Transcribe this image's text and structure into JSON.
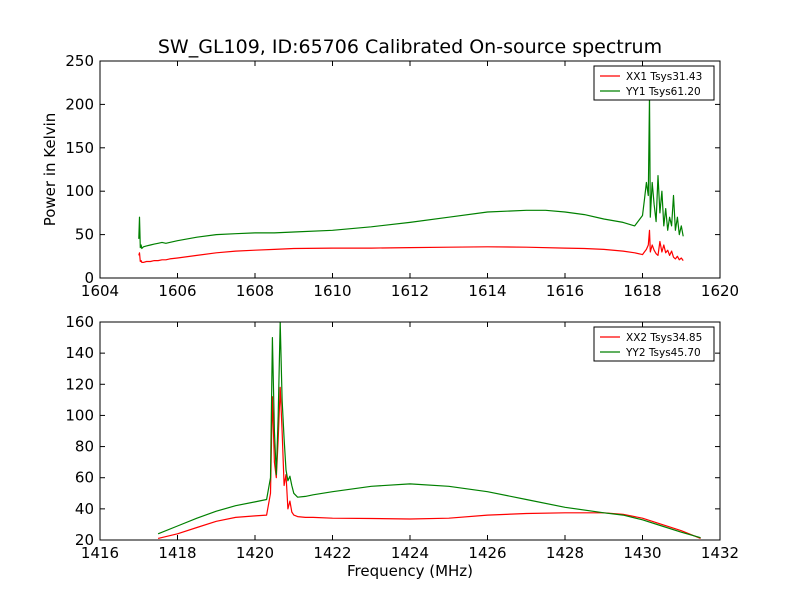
{
  "title": "SW_GL109, ID:65706 Calibrated On-source spectrum",
  "chart_data": [
    {
      "type": "line",
      "xlabel": "",
      "ylabel": "Power in Kelvin",
      "xlim": [
        1604,
        1620
      ],
      "ylim": [
        0,
        250
      ],
      "xticks": [
        "1604",
        "1606",
        "1608",
        "1610",
        "1612",
        "1614",
        "1616",
        "1618",
        "1620"
      ],
      "yticks": [
        "0",
        "50",
        "100",
        "150",
        "200",
        "250"
      ],
      "legend_position": "top-right",
      "grid": false,
      "series": [
        {
          "name": "XX1 Tsys31.43",
          "color": "#ff0000",
          "x": [
            1605.0,
            1605.02,
            1605.04,
            1605.06,
            1605.08,
            1605.12,
            1605.2,
            1605.3,
            1605.4,
            1605.5,
            1605.6,
            1605.7,
            1605.8,
            1606.0,
            1606.5,
            1607.0,
            1607.5,
            1608.0,
            1608.5,
            1609.0,
            1610.0,
            1611.0,
            1612.0,
            1613.0,
            1614.0,
            1615.0,
            1616.0,
            1616.5,
            1617.0,
            1617.5,
            1617.8,
            1618.0,
            1618.05,
            1618.1,
            1618.15,
            1618.18,
            1618.2,
            1618.25,
            1618.3,
            1618.35,
            1618.4,
            1618.45,
            1618.5,
            1618.55,
            1618.6,
            1618.65,
            1618.7,
            1618.75,
            1618.8,
            1618.85,
            1618.9,
            1618.95,
            1619.0,
            1619.05
          ],
          "y": [
            26,
            29,
            19,
            20,
            18,
            18,
            19,
            19,
            20,
            20,
            21,
            21,
            22,
            23,
            26,
            29,
            31,
            32,
            33,
            34,
            34.5,
            34.5,
            35,
            35.5,
            36,
            35.5,
            34.5,
            34,
            33,
            31,
            29,
            27,
            30,
            33,
            38,
            55,
            30,
            38,
            32,
            28,
            26,
            42,
            30,
            38,
            29,
            32,
            26,
            31,
            24,
            22,
            25,
            21,
            23,
            20
          ]
        },
        {
          "name": "YY1 Tsys61.20",
          "color": "#008000",
          "x": [
            1605.0,
            1605.02,
            1605.04,
            1605.06,
            1605.08,
            1605.12,
            1605.2,
            1605.3,
            1605.4,
            1605.5,
            1605.6,
            1605.7,
            1605.8,
            1606.0,
            1606.5,
            1607.0,
            1607.5,
            1608.0,
            1608.5,
            1609.0,
            1610.0,
            1611.0,
            1612.0,
            1613.0,
            1614.0,
            1615.0,
            1615.5,
            1616.0,
            1616.5,
            1617.0,
            1617.5,
            1617.8,
            1618.0,
            1618.05,
            1618.1,
            1618.15,
            1618.18,
            1618.2,
            1618.25,
            1618.3,
            1618.35,
            1618.4,
            1618.45,
            1618.5,
            1618.55,
            1618.6,
            1618.65,
            1618.7,
            1618.75,
            1618.8,
            1618.85,
            1618.9,
            1618.95,
            1619.0,
            1619.05
          ],
          "y": [
            45,
            70,
            35,
            38,
            34,
            36,
            37,
            38,
            39,
            40,
            41,
            40,
            41,
            43,
            47,
            50,
            51,
            52,
            52,
            53,
            55,
            59,
            64,
            70,
            76,
            78,
            78,
            76,
            73,
            68,
            64,
            60,
            72,
            90,
            110,
            95,
            210,
            70,
            110,
            85,
            65,
            118,
            75,
            100,
            60,
            80,
            55,
            70,
            60,
            95,
            55,
            70,
            50,
            60,
            48
          ]
        }
      ]
    },
    {
      "type": "line",
      "xlabel": "Frequency (MHz)",
      "ylabel": "",
      "xlim": [
        1416,
        1432
      ],
      "ylim": [
        20,
        160
      ],
      "xticks": [
        "1416",
        "1418",
        "1420",
        "1422",
        "1424",
        "1426",
        "1428",
        "1430",
        "1432"
      ],
      "yticks": [
        "20",
        "40",
        "60",
        "80",
        "100",
        "120",
        "140",
        "160"
      ],
      "legend_position": "top-right",
      "grid": false,
      "series": [
        {
          "name": "XX2 Tsys34.85",
          "color": "#ff0000",
          "x": [
            1417.5,
            1418.0,
            1418.5,
            1419.0,
            1419.5,
            1420.0,
            1420.3,
            1420.4,
            1420.45,
            1420.5,
            1420.55,
            1420.6,
            1420.65,
            1420.7,
            1420.75,
            1420.8,
            1420.85,
            1420.9,
            1420.95,
            1421.0,
            1421.1,
            1421.3,
            1421.5,
            1422.0,
            1423.0,
            1424.0,
            1425.0,
            1426.0,
            1427.0,
            1428.0,
            1429.0,
            1429.5,
            1430.0,
            1430.5,
            1431.0,
            1431.5
          ],
          "y": [
            21,
            24,
            28,
            32,
            34.5,
            35.5,
            36,
            50,
            112,
            70,
            60,
            85,
            118,
            90,
            55,
            62,
            40,
            45,
            38,
            36,
            35,
            34.5,
            34.5,
            34,
            33.8,
            33.5,
            34,
            36,
            37,
            37.5,
            37.5,
            36.5,
            34,
            30,
            26,
            21
          ]
        },
        {
          "name": "YY2 Tsys45.70",
          "color": "#008000",
          "x": [
            1417.5,
            1418.0,
            1418.5,
            1419.0,
            1419.5,
            1420.0,
            1420.3,
            1420.4,
            1420.45,
            1420.5,
            1420.55,
            1420.6,
            1420.65,
            1420.7,
            1420.75,
            1420.8,
            1420.85,
            1420.9,
            1420.95,
            1421.0,
            1421.1,
            1421.3,
            1421.5,
            1422.0,
            1423.0,
            1424.0,
            1425.0,
            1426.0,
            1427.0,
            1428.0,
            1429.0,
            1429.5,
            1430.0,
            1430.5,
            1431.0,
            1431.5
          ],
          "y": [
            24,
            29,
            34,
            38.5,
            42,
            44.5,
            46,
            60,
            150,
            90,
            62,
            100,
            160,
            110,
            85,
            65,
            58,
            61,
            55,
            50,
            47.5,
            48,
            49,
            51,
            54.5,
            56,
            54.5,
            51,
            46,
            41,
            37.5,
            36,
            33,
            29,
            25,
            21.5
          ]
        }
      ]
    }
  ]
}
